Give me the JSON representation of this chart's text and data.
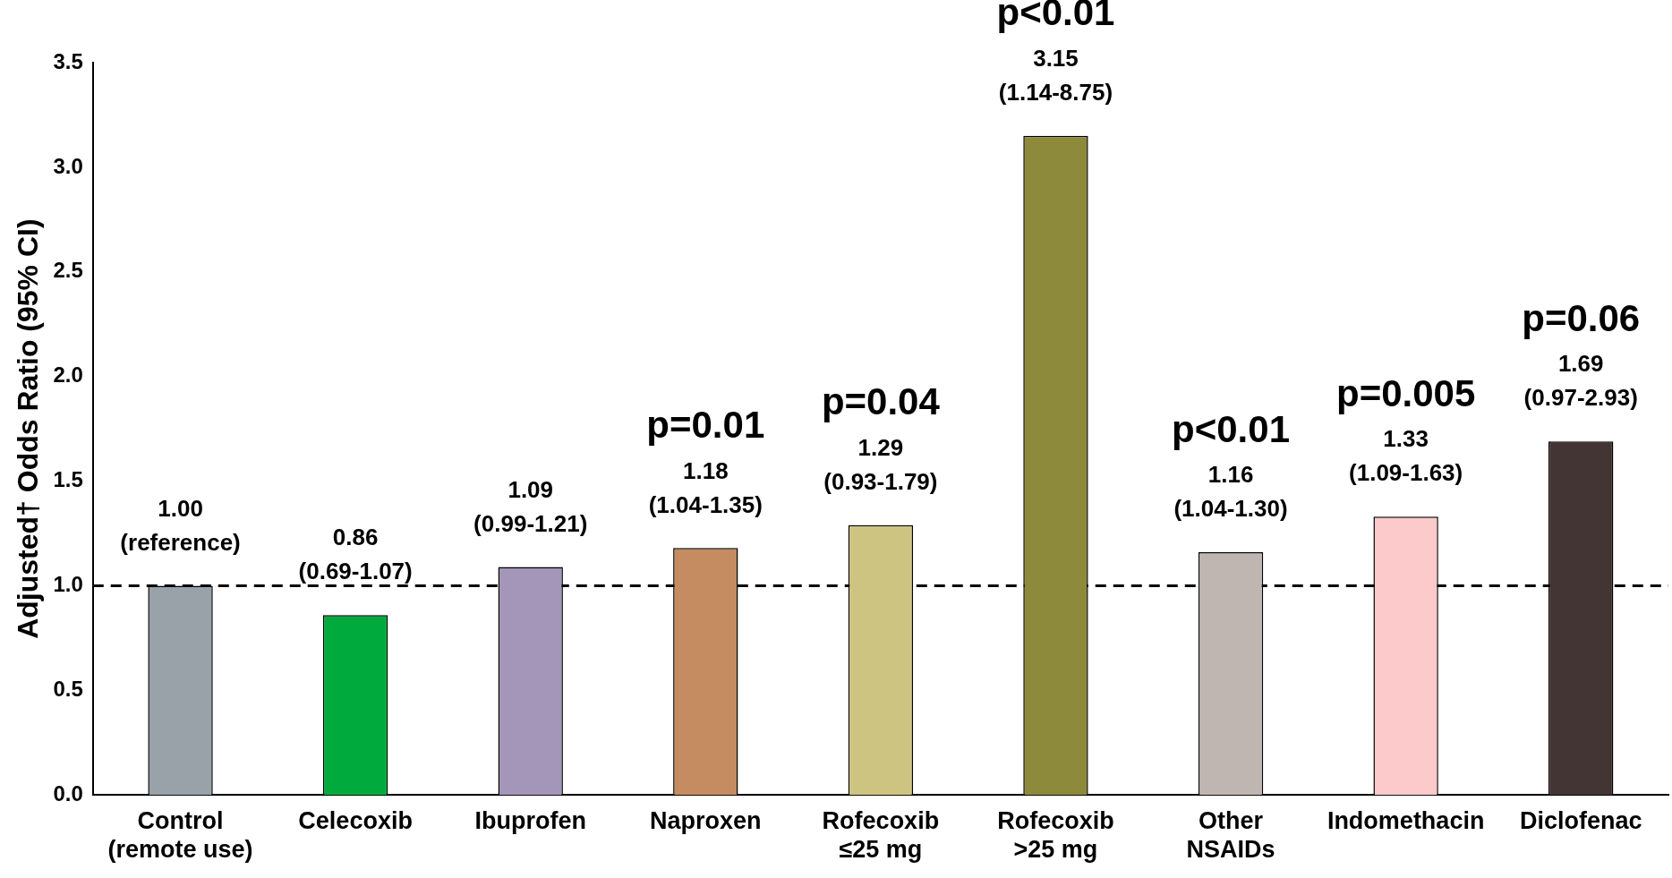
{
  "chart_data": {
    "type": "bar",
    "ylabel": "Adjusted† Odds Ratio (95% CI)",
    "categories": [
      "Control\n(remote use)",
      "Celecoxib",
      "Ibuprofen",
      "Naproxen",
      "Rofecoxib\n≤25 mg",
      "Rofecoxib\n>25 mg",
      "Other\nNSAIDs",
      "Indomethacin",
      "Diclofenac"
    ],
    "values": [
      1.0,
      0.86,
      1.09,
      1.18,
      1.29,
      3.15,
      1.16,
      1.33,
      1.69
    ],
    "colors": [
      "#99a2a8",
      "#00aa3c",
      "#a396b9",
      "#c48c60",
      "#ccc480",
      "#8e8a3c",
      "#bfb6b1",
      "#fccaca",
      "#433534"
    ],
    "value_labels": [
      "1.00\n(reference)",
      "0.86\n(0.69-1.07)",
      "1.09\n(0.99-1.21)",
      "p=0.01\n1.18\n(1.04-1.35)",
      "p=0.04\n1.29\n(0.93-1.79)",
      "p<0.01\n3.15\n(1.14-8.75)",
      "p<0.01\n1.16\n(1.04-1.30)",
      "p=0.005\n1.33\n(1.09-1.63)",
      "p=0.06\n1.69\n(0.97-2.93)"
    ],
    "ylim": [
      0,
      3.5
    ],
    "yticks": [
      {
        "value": 0,
        "label": "0.0"
      },
      {
        "value": 0.5,
        "label": "0.5"
      },
      {
        "value": 1,
        "label": "1.0"
      },
      {
        "value": 1.5,
        "label": "1.5"
      },
      {
        "value": 2,
        "label": "2.0"
      },
      {
        "value": 2.5,
        "label": "2.5"
      },
      {
        "value": 3,
        "label": "3.0"
      },
      {
        "value": 3.5,
        "label": "3.5"
      }
    ],
    "ref_lines": [
      {
        "axis": "y",
        "value": 1,
        "line_style": "dashed",
        "color": "#000000"
      }
    ],
    "grid": false,
    "legend": false
  }
}
